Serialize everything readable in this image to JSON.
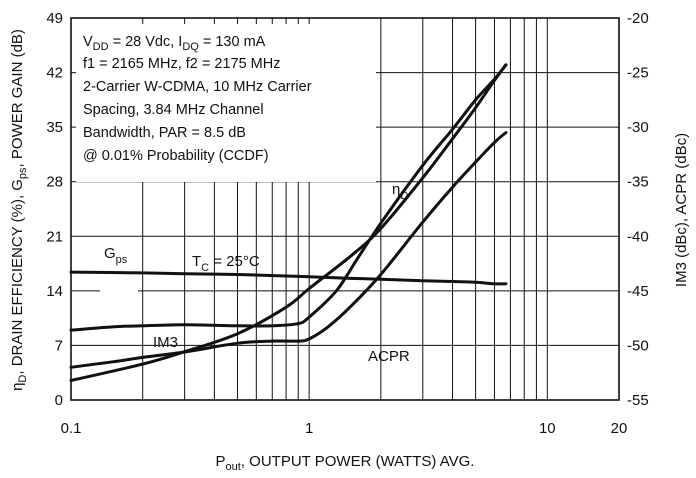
{
  "chart_data": {
    "type": "line",
    "x_scale": "log",
    "xlim": [
      0.1,
      20
    ],
    "ylim_left": [
      0,
      49
    ],
    "ylim_right": [
      -55,
      -20
    ],
    "x_ticks": [
      "0.1",
      "1",
      "10",
      "20"
    ],
    "y_ticks_left": [
      "0",
      "7",
      "14",
      "21",
      "28",
      "35",
      "42",
      "49"
    ],
    "y_ticks_right": [
      "-55",
      "-50",
      "-45",
      "-40",
      "-35",
      "-30",
      "-25",
      "-20"
    ],
    "xlabel": {
      "p1": "P",
      "p1sub": "out",
      "p2": ", OUTPUT POWER (WATTS) AVG."
    },
    "ylabel_left": {
      "p1": "η",
      "p1sub": "D",
      "p2": ", DRAIN EFFICIENCY (%), G",
      "p2sub": "ps",
      "p3": ", POWER GAIN (dB)"
    },
    "ylabel_right": "IM3 (dBc), ACPR (dBc)",
    "grid": true,
    "conditions": {
      "line1": {
        "a": "V",
        "asub": "DD",
        "b": " = 28 Vdc, I",
        "bsub": "DQ",
        "c": " = 130 mA"
      },
      "line2": "f1 = 2165 MHz, f2 = 2175 MHz",
      "line3": "2-Carrier W-CDMA, 10 MHz Carrier",
      "line4": "Spacing, 3.84 MHz Channel",
      "line5": "Bandwidth, PAR = 8.5 dB",
      "line6": "@ 0.01% Probability (CCDF)"
    },
    "annotations": {
      "gps": {
        "main": "G",
        "sub": "ps"
      },
      "tc": {
        "main": "T",
        "sub": "C",
        "rest": " = 25°C"
      },
      "im3": "IM3",
      "etad": {
        "main": "η",
        "sub": "D"
      },
      "acpr": "ACPR"
    },
    "series": [
      {
        "axis": "left",
        "x": [
          0.1,
          0.2,
          0.3,
          0.5,
          0.8,
          1,
          1.5,
          2,
          3,
          4,
          5,
          6,
          6.7
        ],
        "y": [
          16.4,
          16.3,
          16.2,
          16.1,
          15.9,
          15.8,
          15.6,
          15.5,
          15.3,
          15.2,
          15.1,
          14.9,
          14.9
        ]
      },
      {
        "axis": "left",
        "x": [
          0.1,
          0.2,
          0.3,
          0.5,
          0.8,
          1,
          1.5,
          2,
          3,
          4,
          5,
          6,
          6.7
        ],
        "y": [
          2.5,
          4.6,
          6.2,
          8.5,
          11.9,
          14.3,
          18.5,
          22.0,
          28.5,
          33.5,
          37.5,
          41.0,
          43.0
        ]
      },
      {
        "axis": "right",
        "x": [
          0.1,
          0.15,
          0.2,
          0.3,
          0.5,
          0.7,
          0.9,
          1,
          1.3,
          1.6,
          2,
          3,
          4,
          5,
          6,
          6.7
        ],
        "y": [
          -48.6,
          -48.3,
          -48.2,
          -48.1,
          -48.2,
          -48.2,
          -48.0,
          -47.4,
          -45.0,
          -42.0,
          -38.8,
          -33.5,
          -30.2,
          -27.5,
          -25.6,
          -24.3
        ]
      },
      {
        "axis": "right",
        "x": [
          0.1,
          0.15,
          0.2,
          0.3,
          0.5,
          0.7,
          0.9,
          1,
          1.2,
          1.5,
          2,
          3,
          4,
          5,
          6,
          6.7
        ],
        "y": [
          -52.0,
          -51.5,
          -51.1,
          -50.6,
          -49.8,
          -49.6,
          -49.6,
          -49.4,
          -48.3,
          -46.4,
          -43.5,
          -38.7,
          -35.5,
          -33.2,
          -31.4,
          -30.5
        ]
      }
    ]
  }
}
